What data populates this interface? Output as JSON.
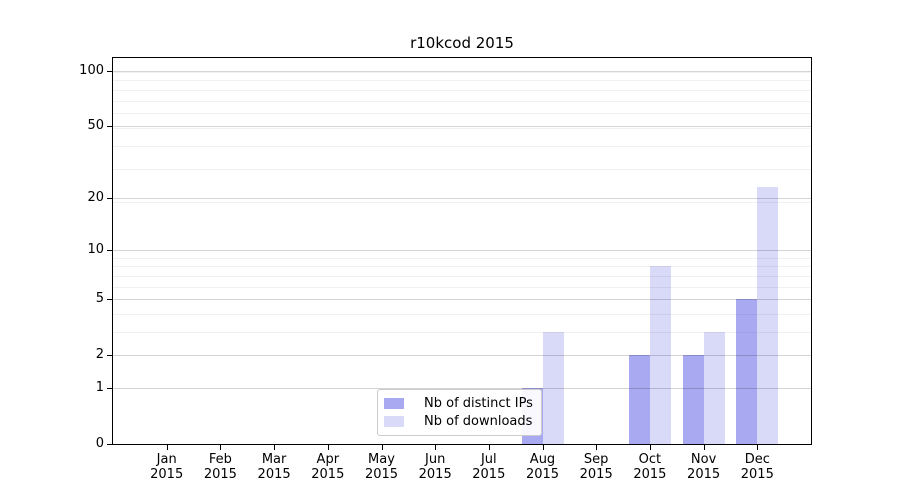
{
  "chart_data": {
    "type": "bar",
    "title": "r10kcod 2015",
    "categories": [
      "Jan",
      "Feb",
      "Mar",
      "Apr",
      "May",
      "Jun",
      "Jul",
      "Aug",
      "Sep",
      "Oct",
      "Nov",
      "Dec"
    ],
    "category_sublabel": "2015",
    "series": [
      {
        "name": "Nb of distinct IPs",
        "color": "#a9a9f1",
        "values": [
          0,
          0,
          0,
          0,
          0,
          0,
          0,
          1,
          0,
          2,
          2,
          5
        ]
      },
      {
        "name": "Nb of downloads",
        "color": "#d9d9f8",
        "values": [
          0,
          0,
          0,
          0,
          0,
          0,
          0,
          3,
          0,
          8,
          3,
          23
        ]
      }
    ],
    "y_scale": "log1p",
    "y_ticks": [
      0,
      1,
      2,
      5,
      10,
      20,
      50,
      100
    ],
    "y_minor_gridlines_plus1": [
      4,
      5,
      7,
      8,
      9,
      10,
      20,
      30,
      40,
      50,
      60,
      70,
      80,
      90,
      100
    ],
    "ylim": [
      0,
      117
    ],
    "grid": true,
    "legend": {
      "position": "inside-bottom-center",
      "entries": [
        "Nb of distinct IPs",
        "Nb of downloads"
      ]
    }
  }
}
